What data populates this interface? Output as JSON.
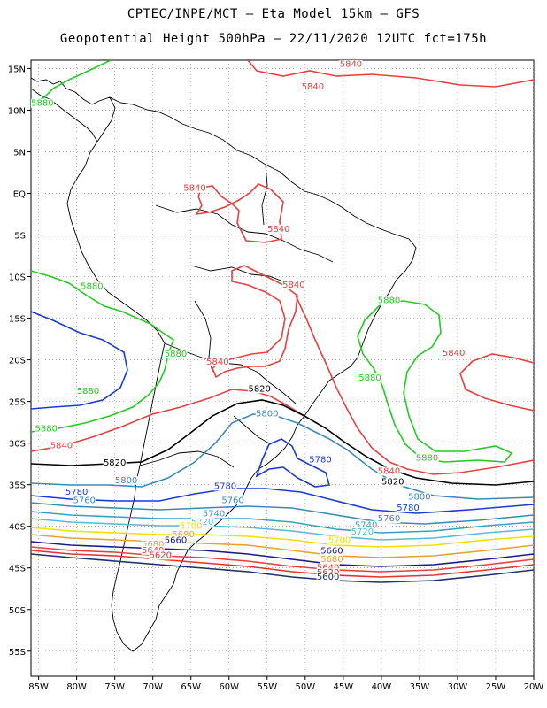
{
  "title_line1": "CPTEC/INPE/MCT –   Eta Model 15km – GFS",
  "title_line2": "Geopotential Height 500hPa – 22/11/2020 12UTC fct=175h",
  "colors": {
    "5880": "#22cc22",
    "5840": "#e84040",
    "5820": "#000000",
    "5800": "#3a8ab8",
    "5780": "#1a3ad8",
    "5760": "#3a8ab8",
    "5740": "#3aa0c0",
    "5720": "#5ab8d8",
    "5700": "#f0e000",
    "5680": "#e8a030",
    "5660": "#1a1a88",
    "5640": "#e84040",
    "5620": "#e83030",
    "5600": "#1a3070"
  },
  "chart_data": {
    "type": "contour",
    "variable": "Geopotential Height 500hPa",
    "lon_range": [
      -86,
      -20
    ],
    "lat_range": [
      16,
      -58
    ],
    "x_ticks": [
      "85W",
      "80W",
      "75W",
      "70W",
      "65W",
      "60W",
      "55W",
      "50W",
      "45W",
      "40W",
      "35W",
      "30W",
      "25W",
      "20W"
    ],
    "y_ticks": [
      "15N",
      "10N",
      "5N",
      "EQ",
      "5S",
      "10S",
      "15S",
      "20S",
      "25S",
      "30S",
      "35S",
      "40S",
      "45S",
      "50S",
      "55S"
    ],
    "contour_levels": [
      5880,
      5840,
      5820,
      5800,
      5780,
      5760,
      5740,
      5720,
      5700,
      5680,
      5660,
      5640,
      5620,
      5600
    ],
    "contour_labels": [
      {
        "text": "5840",
        "lon": -44,
        "lat": 15.2
      },
      {
        "text": "5840",
        "lon": -49,
        "lat": 12.5
      },
      {
        "text": "5880",
        "lon": -84.5,
        "lat": 10.5
      },
      {
        "text": "5840",
        "lon": -64.5,
        "lat": 0.3
      },
      {
        "text": "5840",
        "lon": -53.5,
        "lat": -4.6
      },
      {
        "text": "5840",
        "lon": -51.5,
        "lat": -11.3
      },
      {
        "text": "5880",
        "lon": -78,
        "lat": -11.5
      },
      {
        "text": "5880",
        "lon": -39,
        "lat": -13.2
      },
      {
        "text": "5880",
        "lon": -67,
        "lat": -19.6
      },
      {
        "text": "5840",
        "lon": -30.5,
        "lat": -19.5
      },
      {
        "text": "5840",
        "lon": -61.5,
        "lat": -20.6
      },
      {
        "text": "5880",
        "lon": -41.5,
        "lat": -22.5
      },
      {
        "text": "5820",
        "lon": -56,
        "lat": -23.8
      },
      {
        "text": "5880",
        "lon": -78.5,
        "lat": -24.1
      },
      {
        "text": "5800",
        "lon": -55,
        "lat": -26.8
      },
      {
        "text": "5880",
        "lon": -84,
        "lat": -28.6
      },
      {
        "text": "5840",
        "lon": -82,
        "lat": -30.6
      },
      {
        "text": "5780",
        "lon": -48,
        "lat": -32.3
      },
      {
        "text": "5880",
        "lon": -34,
        "lat": -32.1
      },
      {
        "text": "5820",
        "lon": -75,
        "lat": -32.7
      },
      {
        "text": "5840",
        "lon": -39,
        "lat": -33.7
      },
      {
        "text": "5800",
        "lon": -73.5,
        "lat": -34.8
      },
      {
        "text": "5820",
        "lon": -38.5,
        "lat": -35
      },
      {
        "text": "5780",
        "lon": -60.5,
        "lat": -35.5
      },
      {
        "text": "5780",
        "lon": -80,
        "lat": -36.2
      },
      {
        "text": "5760",
        "lon": -79,
        "lat": -37.2
      },
      {
        "text": "5760",
        "lon": -59.5,
        "lat": -37.2
      },
      {
        "text": "5800",
        "lon": -35,
        "lat": -36.8
      },
      {
        "text": "5780",
        "lon": -36.5,
        "lat": -38.1
      },
      {
        "text": "5740",
        "lon": -62,
        "lat": -38.8
      },
      {
        "text": "5720",
        "lon": -63.5,
        "lat": -39.8
      },
      {
        "text": "5760",
        "lon": -39,
        "lat": -39.4
      },
      {
        "text": "5700",
        "lon": -65,
        "lat": -40.3
      },
      {
        "text": "5740",
        "lon": -42,
        "lat": -40.2
      },
      {
        "text": "5720",
        "lon": -42.5,
        "lat": -41
      },
      {
        "text": "5680",
        "lon": -66,
        "lat": -41.3
      },
      {
        "text": "5700",
        "lon": -45.5,
        "lat": -42
      },
      {
        "text": "5660",
        "lon": -67,
        "lat": -42
      },
      {
        "text": "5680",
        "lon": -70,
        "lat": -42.5
      },
      {
        "text": "5640",
        "lon": -70,
        "lat": -43.2
      },
      {
        "text": "5660",
        "lon": -46.5,
        "lat": -43.3
      },
      {
        "text": "5620",
        "lon": -69,
        "lat": -43.8
      },
      {
        "text": "5680",
        "lon": -46.5,
        "lat": -44.3
      },
      {
        "text": "5640",
        "lon": -47,
        "lat": -45.3
      },
      {
        "text": "5620",
        "lon": -47,
        "lat": -45.9
      },
      {
        "text": "5600",
        "lon": -47,
        "lat": -46.4
      }
    ]
  }
}
